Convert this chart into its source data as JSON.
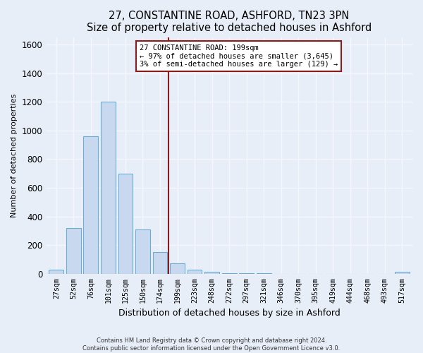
{
  "title": "27, CONSTANTINE ROAD, ASHFORD, TN23 3PN",
  "subtitle": "Size of property relative to detached houses in Ashford",
  "xlabel": "Distribution of detached houses by size in Ashford",
  "ylabel": "Number of detached properties",
  "bar_labels": [
    "27sqm",
    "52sqm",
    "76sqm",
    "101sqm",
    "125sqm",
    "150sqm",
    "174sqm",
    "199sqm",
    "223sqm",
    "248sqm",
    "272sqm",
    "297sqm",
    "321sqm",
    "346sqm",
    "370sqm",
    "395sqm",
    "419sqm",
    "444sqm",
    "468sqm",
    "493sqm",
    "517sqm"
  ],
  "bar_values": [
    30,
    320,
    960,
    1200,
    700,
    310,
    150,
    75,
    30,
    15,
    5,
    5,
    5,
    0,
    0,
    0,
    0,
    0,
    0,
    0,
    15
  ],
  "bar_color": "#c8d9ef",
  "bar_edge_color": "#6aaed6",
  "highlight_index": 7,
  "highlight_line_color": "#8b1a1a",
  "annotation_line1": "27 CONSTANTINE ROAD: 199sqm",
  "annotation_line2": "← 97% of detached houses are smaller (3,645)",
  "annotation_line3": "3% of semi-detached houses are larger (129) →",
  "annotation_box_color": "white",
  "annotation_box_edge_color": "#8b1a1a",
  "ylim": [
    0,
    1650
  ],
  "yticks": [
    0,
    200,
    400,
    600,
    800,
    1000,
    1200,
    1400,
    1600
  ],
  "background_color": "#e8eef8",
  "grid_color": "#f5f7fc",
  "footer_line1": "Contains HM Land Registry data © Crown copyright and database right 2024.",
  "footer_line2": "Contains public sector information licensed under the Open Government Licence v3.0."
}
